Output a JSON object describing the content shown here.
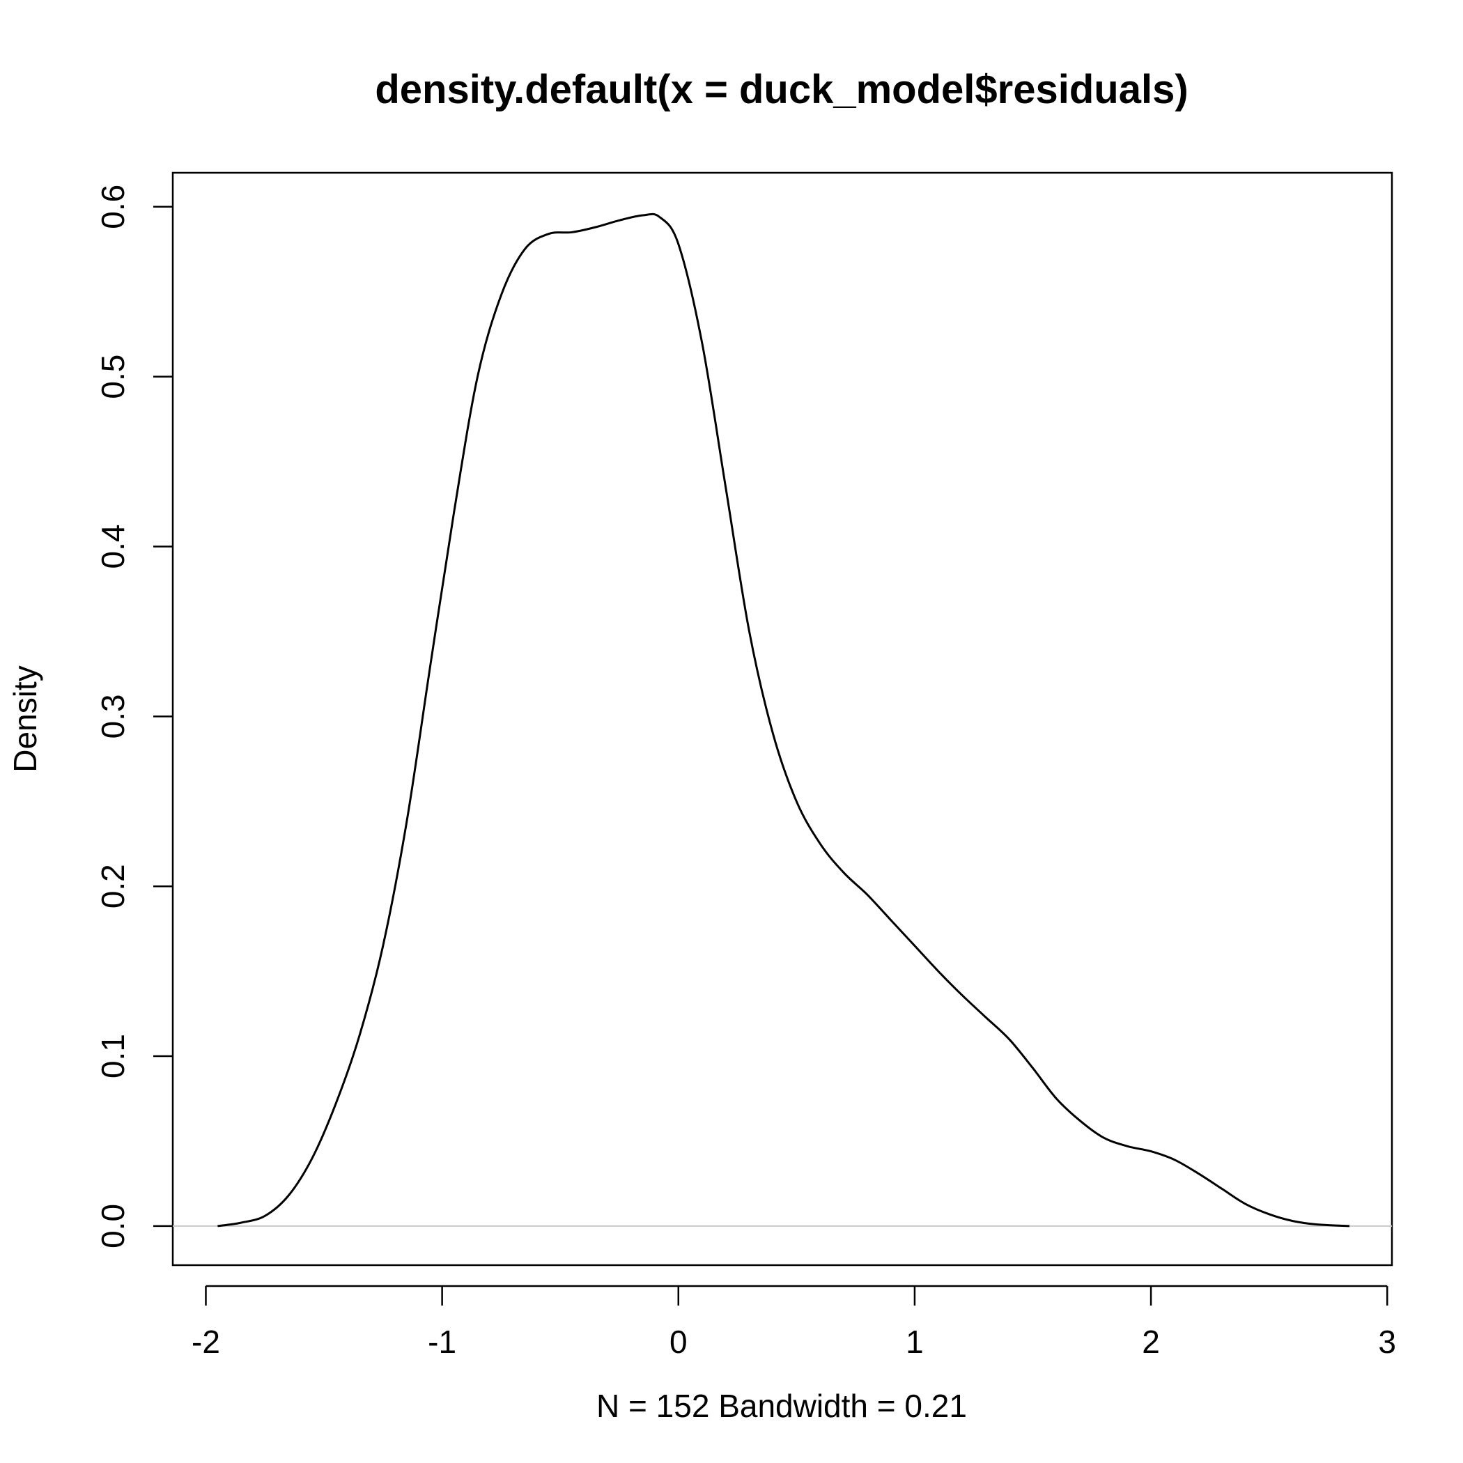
{
  "chart_data": {
    "type": "line",
    "title": "density.default(x = duck_model$residuals)",
    "xlabel": "N = 152   Bandwidth = 0.21",
    "ylabel": "Density",
    "xlim": [
      -2.14,
      3.02
    ],
    "ylim": [
      -0.023,
      0.62
    ],
    "x_ticks": [
      -2,
      -1,
      0,
      1,
      2,
      3
    ],
    "x_tick_labels": [
      "-2",
      "-1",
      "0",
      "1",
      "2",
      "3"
    ],
    "y_ticks": [
      0.0,
      0.1,
      0.2,
      0.3,
      0.4,
      0.5,
      0.6
    ],
    "y_tick_labels": [
      "0.0",
      "0.1",
      "0.2",
      "0.3",
      "0.4",
      "0.5",
      "0.6"
    ],
    "grid": false,
    "zero_baseline": true,
    "series": [
      {
        "color": "#000000",
        "x": [
          -1.95,
          -1.85,
          -1.75,
          -1.65,
          -1.55,
          -1.45,
          -1.35,
          -1.25,
          -1.15,
          -1.05,
          -0.95,
          -0.85,
          -0.75,
          -0.65,
          -0.55,
          -0.45,
          -0.35,
          -0.25,
          -0.15,
          -0.08,
          0.0,
          0.1,
          0.2,
          0.3,
          0.4,
          0.5,
          0.6,
          0.7,
          0.8,
          0.9,
          1.0,
          1.1,
          1.2,
          1.3,
          1.4,
          1.5,
          1.6,
          1.7,
          1.8,
          1.9,
          2.0,
          2.1,
          2.2,
          2.3,
          2.4,
          2.5,
          2.6,
          2.7,
          2.84
        ],
        "y": [
          0.0,
          0.002,
          0.006,
          0.018,
          0.04,
          0.072,
          0.112,
          0.165,
          0.238,
          0.33,
          0.42,
          0.5,
          0.548,
          0.575,
          0.584,
          0.585,
          0.588,
          0.592,
          0.595,
          0.594,
          0.578,
          0.52,
          0.435,
          0.35,
          0.29,
          0.25,
          0.225,
          0.208,
          0.195,
          0.18,
          0.165,
          0.15,
          0.136,
          0.123,
          0.11,
          0.093,
          0.075,
          0.062,
          0.052,
          0.047,
          0.044,
          0.039,
          0.031,
          0.022,
          0.013,
          0.007,
          0.003,
          0.001,
          0.0
        ]
      }
    ]
  }
}
